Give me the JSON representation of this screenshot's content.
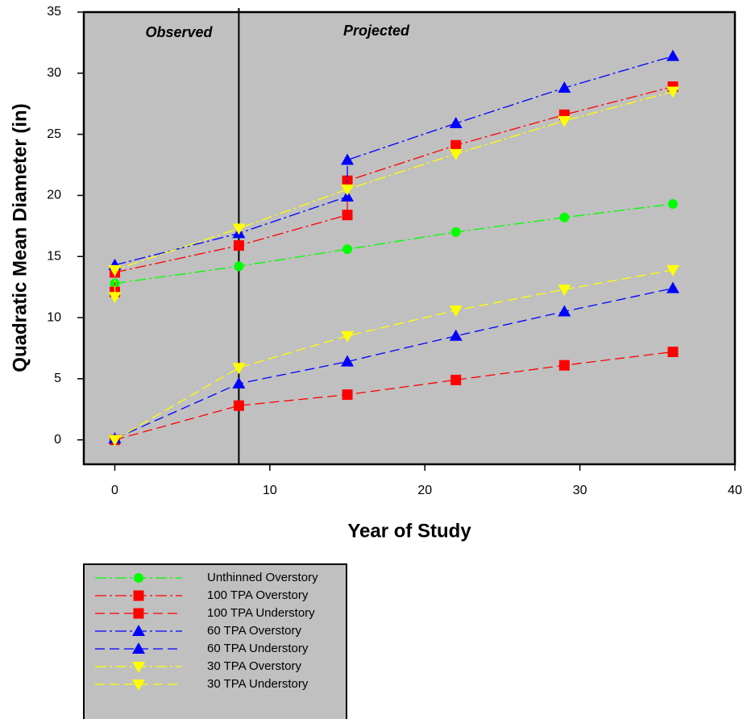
{
  "chart_data": {
    "type": "line",
    "x_label": "Year of Study",
    "y_label": "Quadratic Mean Diameter (in)",
    "xlim": [
      -2,
      40
    ],
    "ylim": [
      -2,
      35
    ],
    "xticks": [
      0,
      10,
      20,
      30,
      40
    ],
    "yticks": [
      0,
      5,
      10,
      15,
      20,
      25,
      30,
      35
    ],
    "divider_x": 8,
    "annotations": [
      "Observed",
      "Projected"
    ],
    "plot_background": "#c0c0c0",
    "series": [
      {
        "name": "Unthinned Overstory",
        "color": "#00ff00",
        "marker": "circle",
        "dash": "dashdot",
        "x": [
          0,
          8,
          15,
          22,
          29,
          36
        ],
        "values": [
          12.8,
          14.2,
          15.6,
          17.0,
          18.2,
          19.3
        ]
      },
      {
        "name": "100 TPA Overstory",
        "color": "#ff0000",
        "marker": "square",
        "dash": "dashdot",
        "x": [
          0,
          0,
          8,
          15,
          15,
          22,
          29,
          36
        ],
        "values": [
          12.1,
          13.7,
          15.9,
          18.4,
          21.2,
          24.1,
          26.6,
          28.9
        ]
      },
      {
        "name": "100 TPA Understory",
        "color": "#ff0000",
        "marker": "square",
        "dash": "dash",
        "x": [
          0,
          8,
          15,
          22,
          29,
          36
        ],
        "values": [
          0,
          2.8,
          3.7,
          4.9,
          6.1,
          7.2
        ]
      },
      {
        "name": "60 TPA Overstory",
        "color": "#0000ff",
        "marker": "triangle",
        "dash": "dashdot",
        "x": [
          0,
          8,
          15,
          15,
          22,
          29,
          36
        ],
        "values": [
          14.3,
          16.9,
          19.9,
          22.9,
          25.9,
          28.8,
          31.4
        ]
      },
      {
        "name": "60 TPA Understory",
        "color": "#0000ff",
        "marker": "triangle",
        "dash": "dash",
        "x": [
          0,
          8,
          15,
          22,
          29,
          36
        ],
        "values": [
          0.1,
          4.6,
          6.4,
          8.5,
          10.5,
          12.4
        ]
      },
      {
        "name": "30 TPA Overstory",
        "color": "#ffff00",
        "marker": "triangle-down",
        "dash": "dashdot",
        "x": [
          0,
          0,
          8,
          15,
          22,
          29,
          36
        ],
        "values": [
          11.7,
          13.9,
          17.3,
          20.5,
          23.4,
          26.1,
          28.5
        ]
      },
      {
        "name": "30 TPA Understory",
        "color": "#ffff00",
        "marker": "triangle-down",
        "dash": "dash",
        "x": [
          0,
          8,
          15,
          22,
          29,
          36
        ],
        "values": [
          0,
          5.9,
          8.5,
          10.6,
          12.3,
          13.9
        ]
      }
    ]
  }
}
